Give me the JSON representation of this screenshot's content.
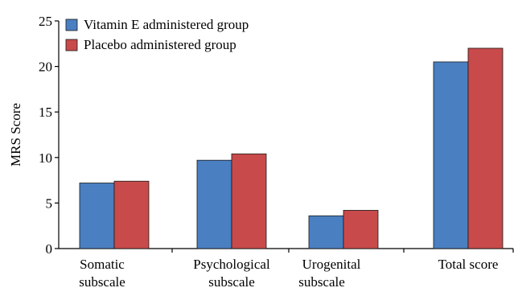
{
  "chart_data": {
    "type": "bar",
    "title": "",
    "xlabel": "",
    "ylabel": "MRS Score",
    "ylim": [
      0,
      25
    ],
    "yticks": [
      0,
      5,
      10,
      15,
      20,
      25
    ],
    "grid": false,
    "legend_position": "top-left",
    "categories": [
      [
        "Somatic",
        "subscale"
      ],
      [
        "Psychological",
        "subscale"
      ],
      [
        "Urogenital",
        "subscale"
      ],
      [
        "Total score"
      ]
    ],
    "series": [
      {
        "name": "Vitamin E administered  group",
        "color": "#4a7fc1",
        "values": [
          7.2,
          9.7,
          3.6,
          20.5
        ]
      },
      {
        "name": "Placebo administered group",
        "color": "#c84a4a",
        "values": [
          7.4,
          10.4,
          4.2,
          22.0
        ]
      }
    ]
  }
}
